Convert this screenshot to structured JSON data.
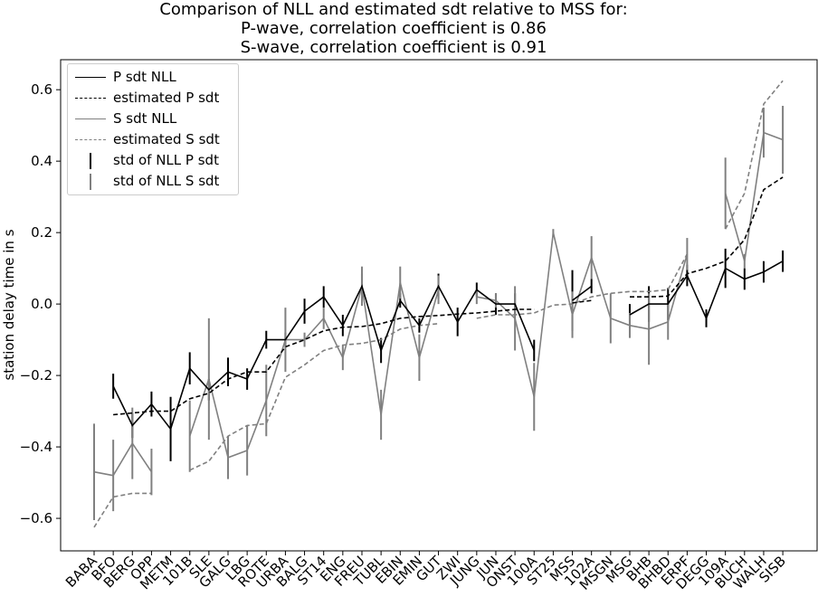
{
  "chart_data": {
    "type": "line",
    "title": [
      "Comparison of NLL and estimated sdt relative to MSS for:",
      "P-wave, correlation coefficient is 0.86",
      "S-wave, correlation coefficient is 0.91"
    ],
    "xlabel": "",
    "ylabel": "station delay time in s",
    "ylim": [
      -0.691,
      0.684
    ],
    "xlim": [
      -1.75,
      37.84
    ],
    "yticks": [
      -0.6,
      -0.4,
      -0.2,
      0.0,
      0.2,
      0.4,
      0.6
    ],
    "ytick_labels": [
      "−0.6",
      "−0.4",
      "−0.2",
      "0.0",
      "0.2",
      "0.4",
      "0.6"
    ],
    "legend_position": "top-left",
    "categories": [
      "BABA",
      "BFO",
      "BERG",
      "OPP",
      "METM",
      "101B",
      "SLE",
      "GALG",
      "LBG",
      "ROTE",
      "URBA",
      "BALG",
      "ST14",
      "ENG",
      "FREU",
      "TUBL",
      "EBIN",
      "EMIN",
      "GUT",
      "ZWI",
      "JUNG",
      "JUN",
      "ONST",
      "100A",
      "ST25",
      "MSS",
      "102A",
      "MSGN",
      "MSG",
      "BHB",
      "BHBD",
      "ERPF",
      "DEGG",
      "109A",
      "BUCH",
      "WALH",
      "SISB"
    ],
    "series": [
      {
        "name": "P sdt NLL",
        "color": "#000000",
        "style": "solid",
        "values": [
          null,
          -0.23,
          -0.34,
          -0.28,
          -0.35,
          -0.18,
          -0.24,
          -0.19,
          -0.21,
          -0.1,
          -0.1,
          -0.02,
          0.02,
          -0.06,
          0.05,
          -0.13,
          0.01,
          -0.06,
          0.05,
          -0.05,
          0.04,
          0.0,
          0.0,
          -0.13,
          null,
          0.01,
          0.05,
          null,
          -0.03,
          0.0,
          0.0,
          0.08,
          -0.04,
          0.1,
          0.07,
          0.09,
          0.12
        ]
      },
      {
        "name": "estimated P sdt",
        "color": "#000000",
        "style": "dashed",
        "values": [
          null,
          -0.31,
          -0.305,
          -0.3,
          -0.3,
          -0.265,
          -0.25,
          -0.21,
          -0.19,
          -0.19,
          -0.12,
          -0.1,
          -0.075,
          -0.065,
          -0.063,
          -0.055,
          -0.04,
          -0.035,
          -0.032,
          -0.028,
          -0.025,
          -0.02,
          -0.015,
          -0.015,
          null,
          0.003,
          0.01,
          null,
          0.02,
          0.02,
          0.022,
          0.085,
          0.1,
          0.12,
          0.18,
          0.32,
          0.355
        ]
      },
      {
        "name": "S sdt NLL",
        "color": "#808080",
        "style": "solid",
        "values": [
          -0.47,
          -0.48,
          -0.39,
          -0.47,
          null,
          -0.37,
          -0.21,
          -0.43,
          -0.41,
          -0.27,
          -0.1,
          -0.1,
          -0.04,
          -0.15,
          0.05,
          -0.31,
          0.06,
          -0.15,
          0.04,
          null,
          0.02,
          0.01,
          -0.04,
          -0.26,
          0.2,
          -0.03,
          0.13,
          -0.04,
          -0.06,
          -0.07,
          -0.05,
          0.14,
          null,
          0.31,
          0.12,
          0.48,
          0.46
        ]
      },
      {
        "name": "estimated S sdt",
        "color": "#808080",
        "style": "dashed",
        "values": [
          -0.625,
          -0.54,
          -0.53,
          -0.53,
          null,
          -0.465,
          -0.44,
          -0.37,
          -0.34,
          -0.335,
          -0.205,
          -0.17,
          -0.13,
          -0.115,
          -0.11,
          -0.1,
          -0.07,
          -0.06,
          -0.055,
          null,
          -0.04,
          -0.03,
          -0.03,
          -0.025,
          -0.003,
          0.0,
          0.02,
          0.03,
          0.035,
          0.035,
          0.04,
          0.14,
          null,
          0.21,
          0.31,
          0.56,
          0.625
        ]
      }
    ],
    "errorbars": [
      {
        "name": "std of NLL P sdt",
        "color": "#000000",
        "of": "P sdt NLL",
        "values": [
          null,
          0.035,
          0.035,
          0.035,
          0.09,
          0.045,
          0.03,
          0.04,
          0.03,
          0.025,
          0.02,
          0.035,
          0.03,
          0.03,
          0.035,
          0.035,
          0.02,
          0.02,
          0.035,
          0.04,
          0.02,
          0.03,
          0.03,
          0.03,
          null,
          0.085,
          0.02,
          null,
          0.03,
          0.05,
          0.045,
          0.03,
          0.025,
          0.055,
          0.03,
          0.03,
          0.03
        ]
      },
      {
        "name": "std of NLL S sdt",
        "color": "#808080",
        "of": "S sdt NLL",
        "values": [
          0.135,
          0.1,
          0.1,
          0.065,
          null,
          0.1,
          0.17,
          0.06,
          0.07,
          0.1,
          0.09,
          0.02,
          0.03,
          0.035,
          0.055,
          0.07,
          0.045,
          0.065,
          0.04,
          null,
          0.02,
          0.02,
          0.09,
          0.095,
          0.01,
          0.065,
          0.06,
          0.07,
          0.035,
          0.1,
          0.05,
          0.045,
          null,
          0.1,
          0.02,
          0.07,
          0.095
        ]
      }
    ]
  }
}
